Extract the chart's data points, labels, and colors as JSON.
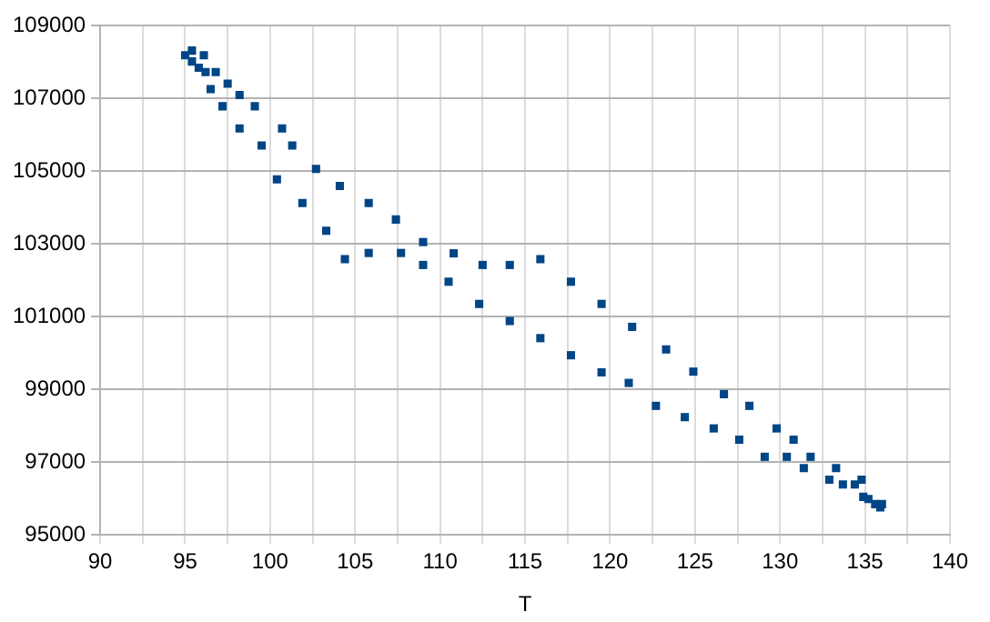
{
  "chart_data": {
    "type": "scatter",
    "xlabel": "T",
    "marker": "square",
    "grid": true,
    "legend": false,
    "xlim": [
      90,
      140
    ],
    "xticks": [
      90,
      {
        "value": 92.5,
        "label": null
      },
      95,
      {
        "value": 97.5,
        "label": null
      },
      100,
      {
        "value": 102.5,
        "label": null
      },
      105,
      {
        "value": 107.5,
        "label": null
      },
      110,
      {
        "value": 112.5,
        "label": null
      },
      115,
      {
        "value": 117.5,
        "label": null
      },
      120,
      {
        "value": 122.5,
        "label": null
      },
      125,
      {
        "value": 127.5,
        "label": null
      },
      130,
      {
        "value": 132.5,
        "label": null
      },
      135,
      {
        "value": 137.5,
        "label": null
      },
      140
    ],
    "ylim": [
      95000,
      109000
    ],
    "yticks": [
      95000,
      97000,
      99000,
      101000,
      103000,
      105000,
      107000,
      109000
    ],
    "series": [
      {
        "color": "#004586",
        "x": [
          95.0,
          95.4,
          96.1,
          95.4,
          95.8,
          96.2,
          96.8,
          96.5,
          97.5,
          98.2,
          99.1,
          97.2,
          98.2,
          100.7,
          99.5,
          101.3,
          100.4,
          102.7,
          104.1,
          101.9,
          105.8,
          103.3,
          107.4,
          104.4,
          105.8,
          107.7,
          109.0,
          109.0,
          110.8,
          110.5,
          112.5,
          114.1,
          112.3,
          115.9,
          114.1,
          117.7,
          115.9,
          119.5,
          117.7,
          121.3,
          119.5,
          121.1,
          123.3,
          124.9,
          122.7,
          124.4,
          126.7,
          126.1,
          128.2,
          127.6,
          129.8,
          129.1,
          130.8,
          130.4,
          131.8,
          131.4,
          133.3,
          132.9,
          134.8,
          133.7,
          134.4,
          134.9,
          135.2,
          135.6,
          136.0,
          135.9
        ],
        "values": [
          108180,
          108310,
          108180,
          108010,
          107840,
          107720,
          107720,
          107250,
          107400,
          107090,
          106780,
          106780,
          106170,
          106170,
          105700,
          105700,
          104770,
          105060,
          104590,
          104120,
          104120,
          103360,
          103670,
          102580,
          102750,
          102750,
          103050,
          102420,
          102740,
          101960,
          102420,
          102420,
          101350,
          102580,
          100880,
          101960,
          100410,
          101350,
          99940,
          100720,
          99470,
          99180,
          100100,
          99490,
          98550,
          98240,
          98870,
          97930,
          98550,
          97620,
          97930,
          97150,
          97620,
          97150,
          97150,
          96840,
          96840,
          96520,
          96520,
          96390,
          96390,
          96050,
          95990,
          95850,
          95850,
          95760
        ]
      }
    ]
  }
}
